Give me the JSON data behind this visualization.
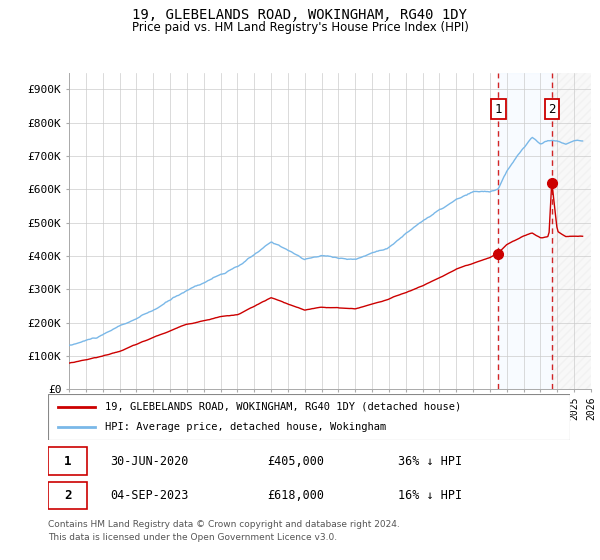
{
  "title": "19, GLEBELANDS ROAD, WOKINGHAM, RG40 1DY",
  "subtitle": "Price paid vs. HM Land Registry's House Price Index (HPI)",
  "ylim": [
    0,
    950000
  ],
  "yticks": [
    0,
    100000,
    200000,
    300000,
    400000,
    500000,
    600000,
    700000,
    800000,
    900000
  ],
  "ytick_labels": [
    "£0",
    "£100K",
    "£200K",
    "£300K",
    "£400K",
    "£500K",
    "£600K",
    "£700K",
    "£800K",
    "£900K"
  ],
  "hpi_color": "#7ab8e8",
  "sale_color": "#cc0000",
  "bg_color": "#ffffff",
  "grid_color": "#cccccc",
  "shade_color": "#ddeeff",
  "transaction1": {
    "date": "30-JUN-2020",
    "price": 405000,
    "pct": "36% ↓ HPI",
    "label": "1"
  },
  "transaction2": {
    "date": "04-SEP-2023",
    "price": 618000,
    "pct": "16% ↓ HPI",
    "label": "2"
  },
  "t1_x": 2020.5,
  "t2_x": 2023.67,
  "legend_label1": "19, GLEBELANDS ROAD, WOKINGHAM, RG40 1DY (detached house)",
  "legend_label2": "HPI: Average price, detached house, Wokingham",
  "footer1": "Contains HM Land Registry data © Crown copyright and database right 2024.",
  "footer2": "This data is licensed under the Open Government Licence v3.0.",
  "xlim_left": 1995.0,
  "xlim_right": 2026.0
}
